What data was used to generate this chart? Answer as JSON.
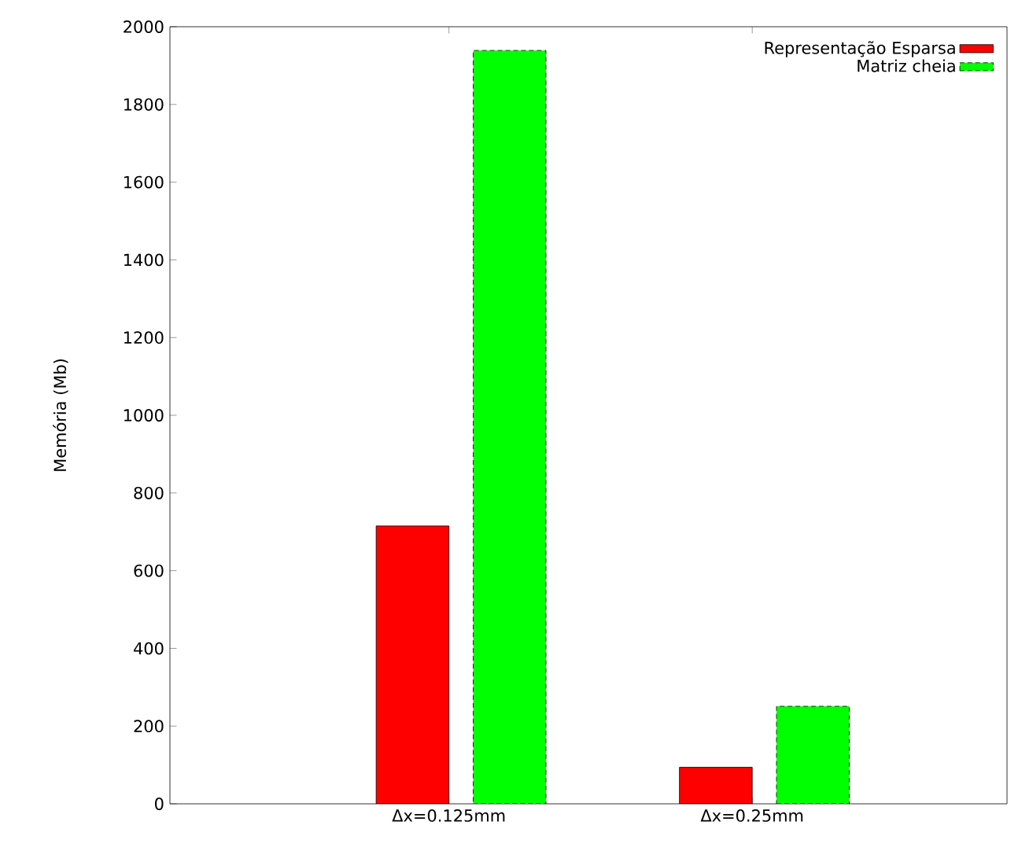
{
  "chart_data": {
    "type": "bar",
    "ylabel": "Memória (Mb)",
    "categories": [
      "Δx=0.125mm",
      "Δx=0.25mm"
    ],
    "series": [
      {
        "name": "Representação Esparsa",
        "color": "#ff0000",
        "values": [
          715,
          94
        ],
        "line_style": "solid"
      },
      {
        "name": "Matriz cheia",
        "color": "#00ff00",
        "values": [
          1939,
          251
        ],
        "line_style": "dashed"
      }
    ],
    "ylim": [
      0,
      2000
    ],
    "yticks": [
      0,
      200,
      400,
      600,
      800,
      1000,
      1200,
      1400,
      1600,
      1800,
      2000
    ],
    "legend": "top right",
    "grid": false
  }
}
